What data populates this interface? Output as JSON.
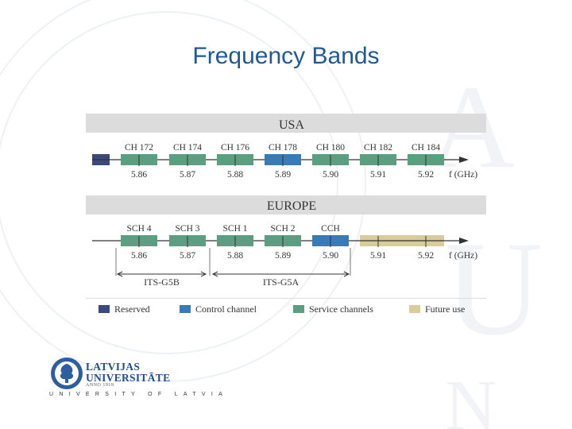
{
  "slide": {
    "title": "Frequency Bands"
  },
  "colors": {
    "reserved": "#3b4a7a",
    "control": "#3a7ab5",
    "service": "#5c9e82",
    "future": "#d8cc9a",
    "header_band": "#dcdcdc",
    "title": "#1f5a96"
  },
  "usa": {
    "header": "USA",
    "channels": [
      {
        "label": "CH 172",
        "type": "service"
      },
      {
        "label": "CH 174",
        "type": "service"
      },
      {
        "label": "CH 176",
        "type": "service"
      },
      {
        "label": "CH 178",
        "type": "control"
      },
      {
        "label": "CH 180",
        "type": "service"
      },
      {
        "label": "CH 182",
        "type": "service"
      },
      {
        "label": "CH 184",
        "type": "service"
      }
    ],
    "ticks": [
      "5.86",
      "5.87",
      "5.88",
      "5.89",
      "5.90",
      "5.91",
      "5.92"
    ],
    "axis_label": "f (GHz)"
  },
  "europe": {
    "header": "EUROPE",
    "channels": [
      {
        "label": "SCH 4",
        "type": "service"
      },
      {
        "label": "SCH 3",
        "type": "service"
      },
      {
        "label": "SCH 1",
        "type": "service"
      },
      {
        "label": "SCH 2",
        "type": "service"
      },
      {
        "label": "CCH",
        "type": "control"
      }
    ],
    "ticks": [
      "5.86",
      "5.87",
      "5.88",
      "5.89",
      "5.90",
      "5.91",
      "5.92"
    ],
    "axis_label": "f (GHz)",
    "ranges": [
      "ITS-G5B",
      "ITS-G5A"
    ]
  },
  "legend": [
    {
      "label": "Reserved",
      "type": "reserved"
    },
    {
      "label": "Control channel",
      "type": "control"
    },
    {
      "label": "Service channels",
      "type": "service"
    },
    {
      "label": "Future use",
      "type": "future"
    }
  ],
  "logo": {
    "name_line1": "LATVIJAS",
    "name_line2": "UNIVERSITĀTE",
    "anno": "ANNO 1919",
    "subtitle": "UNIVERSITY OF LATVIA"
  }
}
